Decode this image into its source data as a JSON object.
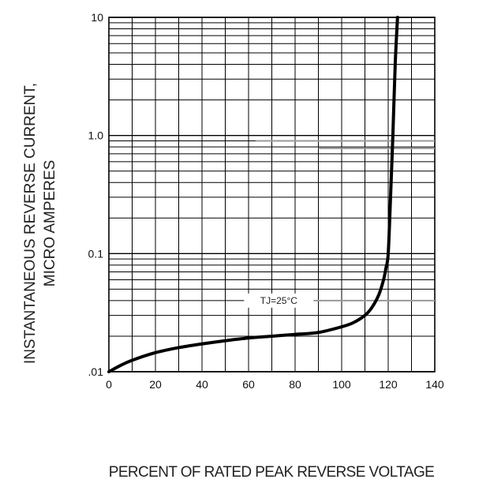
{
  "chart_data": {
    "type": "line",
    "ylabel_line1": "INSTANTANEOUS REVERSE CURRENT,",
    "ylabel_line2": "MICRO AMPERES",
    "xlabel": "PERCENT OF RATED PEAK REVERSE VOLTAGE",
    "xlim": [
      0,
      140
    ],
    "ylim": [
      0.01,
      10
    ],
    "yscale": "log",
    "grid": true,
    "x_ticks": [
      0,
      20,
      40,
      60,
      80,
      100,
      120,
      140
    ],
    "x_tick_labels": [
      "0",
      "20",
      "40",
      "60",
      "80",
      "100",
      "120",
      "140"
    ],
    "y_ticks": [
      0.01,
      0.1,
      1,
      10
    ],
    "y_tick_labels": [
      ".01",
      "0.1",
      "1.0",
      "10"
    ],
    "annotation": "TJ=25°C",
    "series": [
      {
        "x": [
          0,
          5,
          10,
          20,
          30,
          40,
          50,
          60,
          70,
          80,
          90,
          100,
          105,
          110,
          113,
          116,
          118,
          119,
          120,
          121,
          122,
          123,
          124
        ],
        "y": [
          0.01,
          0.0113,
          0.0125,
          0.0145,
          0.016,
          0.0172,
          0.0183,
          0.0193,
          0.02,
          0.0207,
          0.0215,
          0.024,
          0.026,
          0.03,
          0.035,
          0.045,
          0.06,
          0.075,
          0.1,
          0.3,
          1.0,
          4.0,
          10.0
        ],
        "color": "#000000"
      }
    ]
  }
}
